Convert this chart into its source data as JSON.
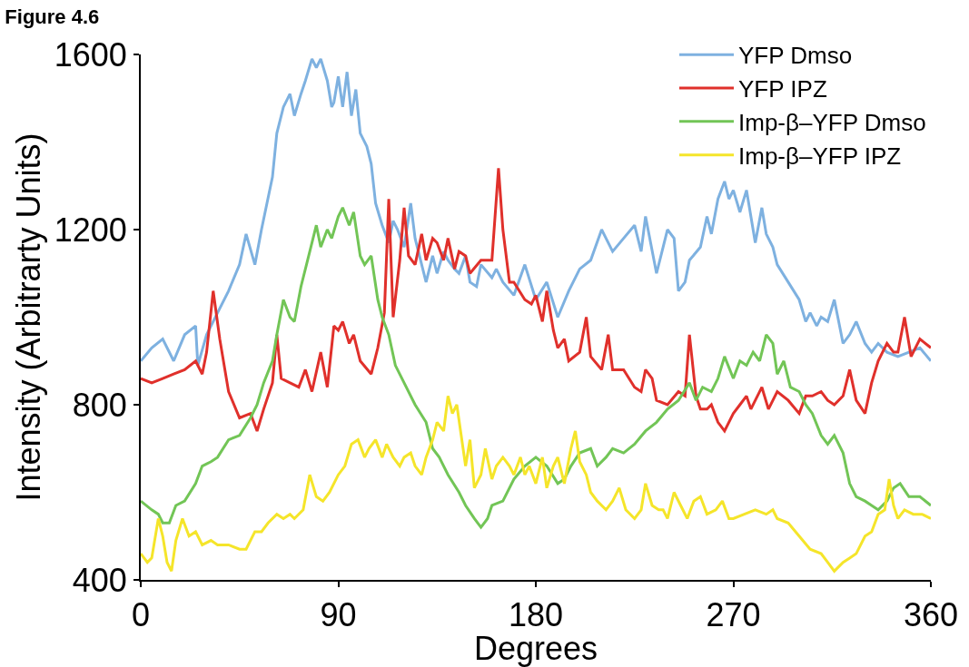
{
  "chart_data": {
    "type": "line",
    "title": "Figure 4.6",
    "xlabel": "Degrees",
    "ylabel": "Intensity (Arbitrarty Units)",
    "xlim": [
      0,
      360
    ],
    "xticks": [
      0,
      90,
      180,
      270,
      360
    ],
    "ylim": [
      400,
      1600
    ],
    "yticks": [
      400,
      800,
      1200,
      1600
    ],
    "legend": "top right",
    "marker": "none",
    "line_style": "solid",
    "series": [
      {
        "name": "YFP Dmso",
        "color": "#7eb1e0",
        "x": [
          0,
          5,
          10,
          15,
          20,
          25,
          26,
          30,
          35,
          40,
          45,
          48,
          52,
          55,
          60,
          62,
          65,
          68,
          70,
          73,
          75,
          78,
          80,
          82,
          85,
          87,
          88,
          90,
          92,
          94,
          96,
          98,
          100,
          103,
          105,
          107,
          110,
          113,
          115,
          117,
          120,
          123,
          125,
          128,
          130,
          133,
          135,
          138,
          140,
          143,
          145,
          148,
          150,
          153,
          155,
          160,
          162,
          165,
          170,
          175,
          180,
          185,
          190,
          195,
          200,
          205,
          210,
          215,
          220,
          225,
          228,
          230,
          235,
          238,
          240,
          243,
          245,
          248,
          250,
          255,
          258,
          260,
          263,
          266,
          268,
          270,
          273,
          276,
          280,
          283,
          285,
          288,
          290,
          295,
          300,
          303,
          305,
          308,
          310,
          313,
          316,
          318,
          320,
          323,
          326,
          330,
          333,
          336,
          340,
          345,
          350,
          355,
          360
        ],
        "values": [
          900,
          930,
          950,
          900,
          960,
          980,
          890,
          960,
          1010,
          1060,
          1120,
          1190,
          1120,
          1200,
          1320,
          1420,
          1480,
          1510,
          1460,
          1510,
          1540,
          1590,
          1570,
          1590,
          1540,
          1480,
          1490,
          1550,
          1480,
          1560,
          1460,
          1520,
          1420,
          1390,
          1350,
          1260,
          1210,
          1170,
          1220,
          1200,
          1160,
          1260,
          1180,
          1120,
          1080,
          1140,
          1100,
          1150,
          1130,
          1110,
          1100,
          1140,
          1080,
          1070,
          1120,
          1090,
          1110,
          1080,
          1050,
          1120,
          1040,
          1080,
          1000,
          1060,
          1110,
          1130,
          1200,
          1150,
          1180,
          1210,
          1150,
          1230,
          1100,
          1160,
          1200,
          1180,
          1060,
          1080,
          1130,
          1160,
          1230,
          1190,
          1270,
          1310,
          1270,
          1290,
          1240,
          1290,
          1170,
          1250,
          1190,
          1160,
          1120,
          1080,
          1040,
          990,
          1010,
          980,
          1000,
          990,
          1040,
          990,
          940,
          960,
          990,
          940,
          920,
          940,
          920,
          910,
          920,
          930,
          900
        ]
      },
      {
        "name": "YFP IPZ",
        "color": "#e0302b",
        "x": [
          0,
          5,
          10,
          15,
          20,
          25,
          28,
          30,
          33,
          36,
          40,
          45,
          50,
          53,
          56,
          60,
          62,
          64,
          68,
          72,
          75,
          78,
          82,
          85,
          88,
          90,
          92,
          95,
          97,
          100,
          105,
          108,
          111,
          113,
          115,
          118,
          120,
          122,
          125,
          128,
          130,
          133,
          135,
          138,
          140,
          143,
          145,
          148,
          150,
          155,
          160,
          163,
          165,
          168,
          170,
          175,
          178,
          180,
          183,
          185,
          188,
          190,
          193,
          195,
          200,
          203,
          205,
          210,
          213,
          215,
          220,
          225,
          228,
          230,
          233,
          235,
          240,
          245,
          248,
          250,
          253,
          255,
          258,
          260,
          263,
          266,
          270,
          273,
          276,
          278,
          280,
          283,
          286,
          290,
          295,
          300,
          303,
          306,
          310,
          313,
          316,
          320,
          323,
          326,
          330,
          333,
          336,
          340,
          343,
          345,
          348,
          351,
          355,
          360
        ],
        "values": [
          860,
          850,
          860,
          870,
          880,
          900,
          870,
          920,
          1060,
          950,
          830,
          770,
          780,
          740,
          790,
          850,
          960,
          860,
          850,
          840,
          880,
          830,
          920,
          840,
          980,
          970,
          990,
          940,
          960,
          900,
          870,
          930,
          1010,
          1270,
          1000,
          1130,
          1250,
          1140,
          1120,
          1190,
          1130,
          1180,
          1170,
          1130,
          1180,
          1110,
          1150,
          1140,
          1100,
          1130,
          1130,
          1340,
          1200,
          1080,
          1080,
          1040,
          1030,
          1050,
          990,
          1060,
          970,
          930,
          950,
          900,
          920,
          1000,
          910,
          880,
          960,
          880,
          880,
          840,
          830,
          880,
          860,
          810,
          800,
          830,
          820,
          960,
          820,
          790,
          790,
          800,
          760,
          740,
          780,
          800,
          820,
          790,
          810,
          840,
          790,
          830,
          810,
          780,
          820,
          820,
          830,
          810,
          800,
          820,
          880,
          810,
          780,
          850,
          900,
          940,
          920,
          920,
          1000,
          910,
          950,
          930
        ]
      },
      {
        "name": "Imp-β–YFP Dmso",
        "color": "#72c556",
        "x": [
          0,
          5,
          8,
          10,
          13,
          16,
          20,
          25,
          28,
          32,
          35,
          40,
          45,
          50,
          53,
          56,
          60,
          62,
          65,
          68,
          70,
          73,
          76,
          80,
          82,
          85,
          87,
          90,
          92,
          95,
          97,
          100,
          102,
          105,
          108,
          110,
          113,
          116,
          120,
          125,
          130,
          133,
          136,
          140,
          145,
          148,
          152,
          155,
          158,
          160,
          165,
          170,
          175,
          180,
          185,
          190,
          193,
          196,
          200,
          205,
          208,
          212,
          215,
          220,
          225,
          230,
          235,
          240,
          245,
          250,
          253,
          256,
          260,
          263,
          266,
          270,
          273,
          276,
          279,
          282,
          285,
          288,
          290,
          293,
          296,
          300,
          303,
          306,
          310,
          313,
          316,
          320,
          323,
          326,
          330,
          333,
          336,
          340,
          343,
          346,
          350,
          355,
          360
        ],
        "values": [
          580,
          560,
          550,
          530,
          530,
          570,
          580,
          620,
          660,
          670,
          680,
          720,
          730,
          770,
          800,
          850,
          900,
          960,
          1040,
          1000,
          990,
          1070,
          1130,
          1210,
          1160,
          1200,
          1180,
          1230,
          1250,
          1210,
          1240,
          1140,
          1120,
          1140,
          1040,
          1000,
          960,
          890,
          850,
          800,
          760,
          700,
          680,
          640,
          600,
          570,
          540,
          520,
          540,
          570,
          580,
          630,
          660,
          680,
          660,
          620,
          630,
          660,
          690,
          700,
          660,
          680,
          700,
          690,
          710,
          740,
          760,
          790,
          810,
          850,
          810,
          840,
          830,
          860,
          910,
          860,
          900,
          890,
          920,
          900,
          960,
          940,
          870,
          900,
          840,
          830,
          800,
          780,
          730,
          710,
          730,
          690,
          620,
          590,
          580,
          570,
          560,
          580,
          610,
          620,
          590,
          590,
          570
        ]
      },
      {
        "name": "Imp-β–YFP IPZ",
        "color": "#f5e52a",
        "x": [
          0,
          3,
          5,
          8,
          10,
          12,
          14,
          16,
          19,
          22,
          25,
          28,
          32,
          35,
          40,
          45,
          48,
          52,
          55,
          58,
          62,
          65,
          68,
          70,
          74,
          77,
          80,
          83,
          86,
          90,
          93,
          96,
          99,
          102,
          104,
          107,
          110,
          112,
          115,
          118,
          120,
          123,
          125,
          128,
          130,
          133,
          135,
          138,
          140,
          142,
          144,
          146,
          148,
          150,
          152,
          155,
          157,
          160,
          162,
          165,
          168,
          170,
          173,
          175,
          177,
          180,
          183,
          185,
          188,
          190,
          193,
          196,
          198,
          200,
          203,
          205,
          208,
          212,
          215,
          218,
          221,
          225,
          228,
          230,
          233,
          236,
          238,
          240,
          243,
          246,
          249,
          252,
          255,
          258,
          262,
          265,
          268,
          270,
          275,
          280,
          285,
          288,
          290,
          295,
          300,
          305,
          310,
          313,
          316,
          320,
          323,
          326,
          330,
          333,
          336,
          339,
          341,
          343,
          345,
          348,
          352,
          356,
          360
        ],
        "values": [
          460,
          440,
          450,
          540,
          500,
          440,
          420,
          490,
          540,
          500,
          510,
          480,
          490,
          480,
          480,
          470,
          470,
          510,
          510,
          530,
          550,
          540,
          550,
          540,
          560,
          640,
          590,
          580,
          600,
          640,
          660,
          710,
          720,
          680,
          700,
          720,
          680,
          710,
          680,
          660,
          680,
          690,
          660,
          640,
          680,
          720,
          760,
          740,
          820,
          780,
          800,
          730,
          660,
          720,
          610,
          640,
          700,
          630,
          660,
          680,
          660,
          640,
          680,
          640,
          660,
          620,
          680,
          610,
          660,
          680,
          620,
          700,
          740,
          670,
          640,
          600,
          580,
          560,
          580,
          610,
          560,
          540,
          560,
          620,
          570,
          560,
          560,
          540,
          600,
          570,
          540,
          580,
          590,
          550,
          560,
          580,
          540,
          540,
          550,
          560,
          550,
          560,
          540,
          530,
          500,
          470,
          460,
          440,
          420,
          440,
          450,
          460,
          500,
          510,
          550,
          560,
          630,
          570,
          540,
          560,
          550,
          550,
          540
        ]
      }
    ]
  }
}
